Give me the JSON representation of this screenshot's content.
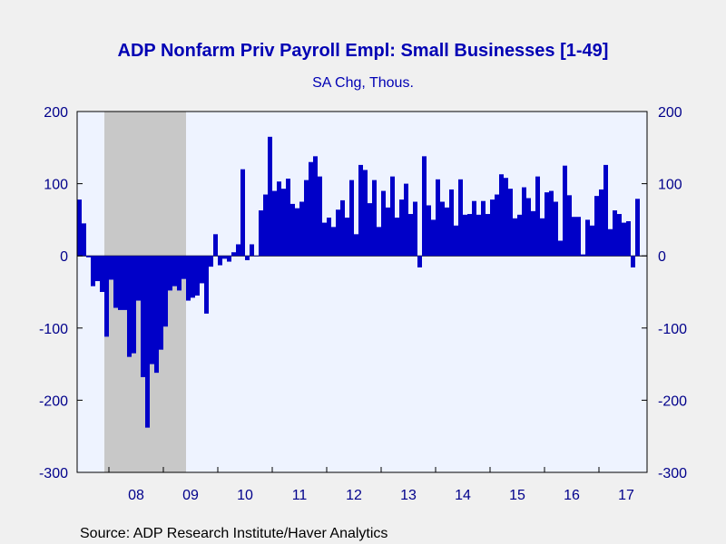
{
  "chart_data": {
    "type": "bar",
    "title": "ADP Nonfarm Priv Payroll Empl: Small Businesses [1-49]",
    "subtitle": "SA Chg, Thous.",
    "source": "Source:  ADP Research Institute/Haver Analytics",
    "ylim": [
      -300,
      200
    ],
    "yticks": [
      200,
      100,
      0,
      -100,
      -200,
      -300
    ],
    "start": "2007-06",
    "x_tick_labels": [
      "08",
      "09",
      "10",
      "11",
      "12",
      "13",
      "14",
      "15",
      "16",
      "17"
    ],
    "recession": [
      "2007-12",
      "2009-06"
    ],
    "colors": {
      "bars": "#0000c8",
      "plot_background": "#eef3ff",
      "recession_shading": "#c8c8c8",
      "axis_text": "#00008b",
      "page_background": "#f0f0f0"
    },
    "series": [
      {
        "values": [
          78,
          45,
          -2,
          -42,
          -35,
          -50,
          -112,
          -33,
          -72,
          -75,
          -75,
          -140,
          -135,
          -62,
          -168,
          -238,
          -150,
          -162,
          -130,
          -98,
          -48,
          -42,
          -48,
          -32,
          -62,
          -58,
          -55,
          -38,
          -80,
          -15,
          30,
          -13,
          -4,
          -8,
          5,
          16,
          120,
          -6,
          16,
          0,
          63,
          85,
          165,
          90,
          103,
          93,
          107,
          72,
          66,
          75,
          105,
          130,
          138,
          110,
          46,
          53,
          40,
          64,
          77,
          53,
          105,
          30,
          126,
          119,
          73,
          105,
          40,
          90,
          67,
          110,
          53,
          78,
          100,
          58,
          75,
          -16,
          138,
          70,
          50,
          106,
          75,
          67,
          92,
          42,
          106,
          57,
          58,
          76,
          57,
          76,
          58,
          78,
          85,
          113,
          108,
          93,
          52,
          57,
          95,
          80,
          62,
          110,
          52,
          88,
          90,
          75,
          21,
          125,
          84,
          54,
          54,
          2,
          50,
          42,
          83,
          92,
          126,
          37,
          63,
          58,
          46,
          48,
          -16,
          79
        ]
      }
    ]
  }
}
